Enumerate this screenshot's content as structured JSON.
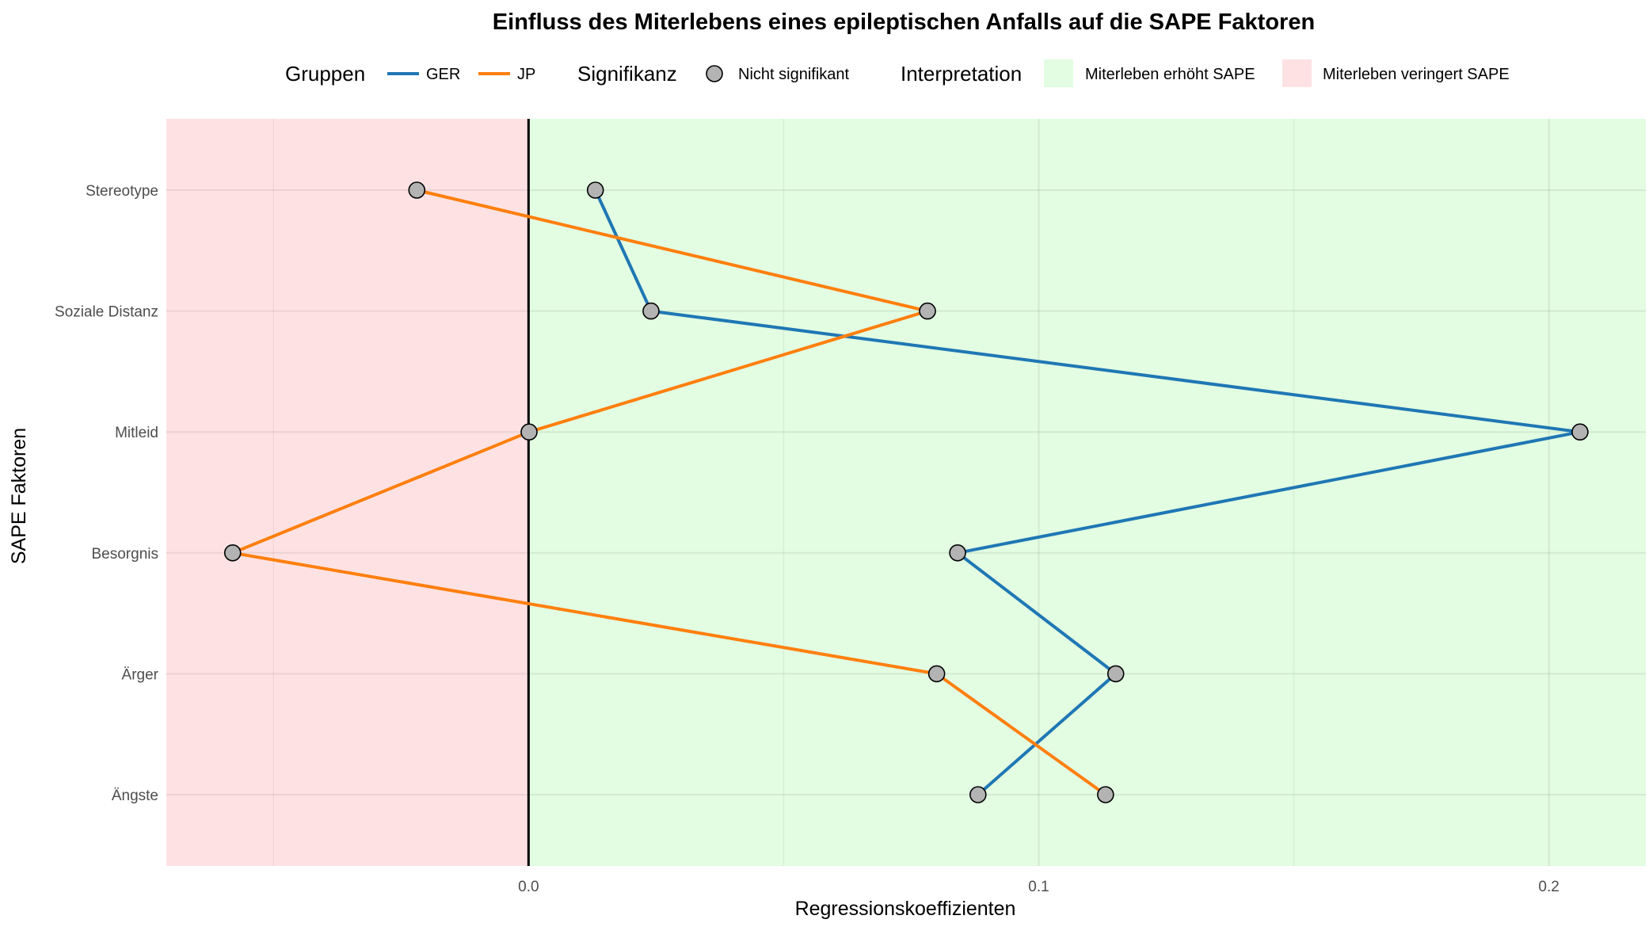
{
  "chart_data": {
    "type": "line",
    "title": "Einfluss des Miterlebens eines epileptischen Anfalls auf die SAPE Faktoren",
    "xlabel": "Regressionskoeffizienten",
    "ylabel": "SAPE Faktoren",
    "categories": [
      "Stereotype",
      "Soziale Distanz",
      "Mitleid",
      "Besorgnis",
      "Ärger",
      "Ängste"
    ],
    "xlim": [
      -0.071,
      0.219
    ],
    "x_ticks": [
      0.0,
      0.1,
      0.2
    ],
    "x_tick_labels": [
      "0.0",
      "0.1",
      "0.2"
    ],
    "zero_line": 0.0,
    "grid": true,
    "series": [
      {
        "name": "GER",
        "color": "#1f77b4",
        "values": [
          0.0131,
          0.024,
          0.2061,
          0.0841,
          0.1151,
          0.0881
        ]
      },
      {
        "name": "JP",
        "color": "#ff7f0e",
        "values": [
          -0.0219,
          0.0782,
          0.0001,
          -0.058,
          0.08,
          0.1131
        ]
      }
    ],
    "regions": [
      {
        "label": "Miterleben erhöht SAPE",
        "color": "#e2fde2",
        "from": 0.0,
        "to": 0.219
      },
      {
        "label": "Miterleben veringert SAPE",
        "color": "#fee2e3",
        "from": -0.071,
        "to": 0.0
      }
    ],
    "legend": {
      "position": "top",
      "groups_title": "Gruppen",
      "significance_title": "Signifikanz",
      "significance_label": "Nicht signifikant",
      "point_color": "#b3b3b3",
      "interpretation_title": "Interpretation"
    }
  }
}
